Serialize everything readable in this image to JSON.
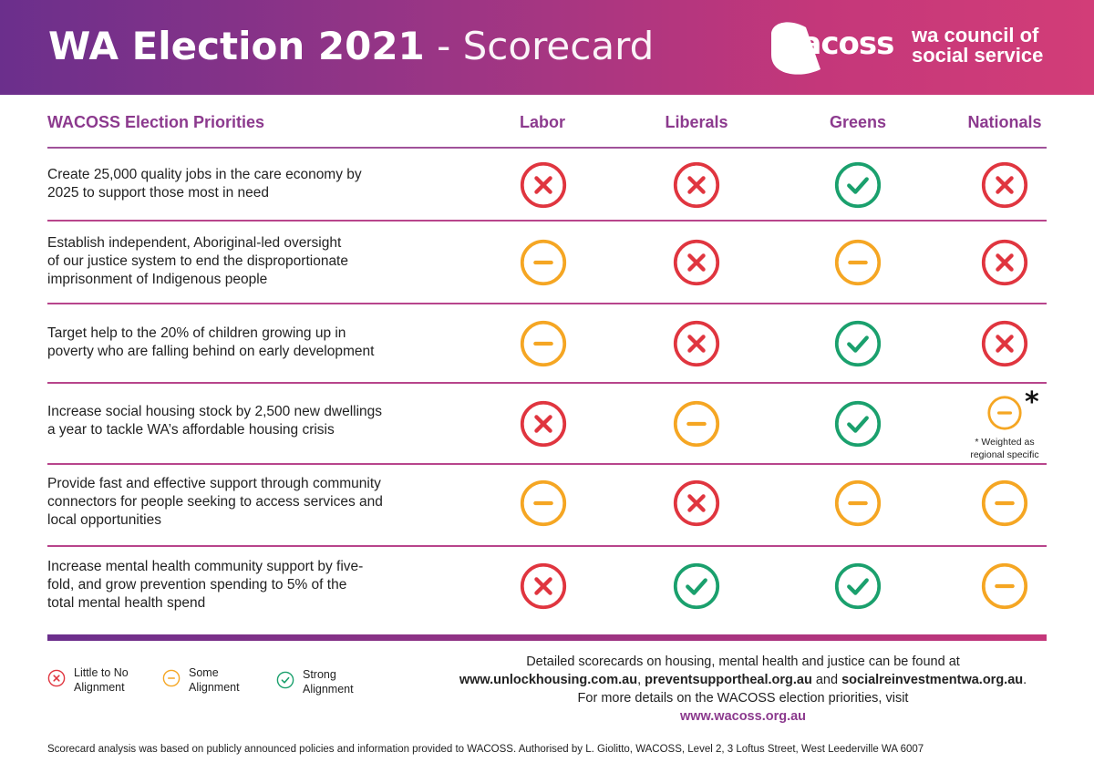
{
  "header": {
    "title_bold": "WA Election 2021",
    "title_light": " - Scorecard",
    "logo_word": "wacoss",
    "logo_org_line1": "wa council of",
    "logo_org_line2": "social service"
  },
  "colors": {
    "purple": "#6b2f8c",
    "magenta": "#c4377a",
    "heading": "#8c3a8e",
    "cross": "#e0353f",
    "dash": "#f5a623",
    "check": "#1aa06d"
  },
  "table": {
    "priorities_heading": "WACOSS Election Priorities",
    "parties": [
      "Labor",
      "Liberals",
      "Greens",
      "Nationals"
    ],
    "rows": [
      {
        "line1": "Create 25,000 quality jobs in the care economy by",
        "line2": "2025 to support those most in need",
        "line3": "",
        "ratings": [
          "cross",
          "cross",
          "check",
          "cross"
        ]
      },
      {
        "line1": "Establish independent, Aboriginal-led oversight",
        "line2": "of our justice system to end the disproportionate",
        "line3": "imprisonment of Indigenous people",
        "ratings": [
          "dash",
          "cross",
          "dash",
          "cross"
        ]
      },
      {
        "line1": "Target help to the 20% of children growing up in",
        "line2": "poverty who are falling behind on early development",
        "line3": "",
        "ratings": [
          "dash",
          "cross",
          "check",
          "cross"
        ]
      },
      {
        "line1": "Increase social housing stock by 2,500 new dwellings",
        "line2": "a year to tackle WA’s affordable housing crisis",
        "line3": "",
        "ratings": [
          "cross",
          "dash",
          "check",
          "dash"
        ]
      },
      {
        "line1": "Provide fast and effective support through community",
        "line2": "connectors for people seeking to access services and",
        "line3": "local opportunities",
        "ratings": [
          "dash",
          "cross",
          "dash",
          "dash"
        ]
      },
      {
        "line1": "Increase mental health community support by five-",
        "line2": "fold, and grow prevention spending to 5% of the",
        "line3": "total mental health spend",
        "ratings": [
          "cross",
          "check",
          "check",
          "dash"
        ]
      }
    ],
    "asterisk": "*",
    "note_line1": "* Weighted as",
    "note_line2": "regional  specific"
  },
  "legend": [
    {
      "icon": "cross",
      "line1": "Little to No",
      "line2": "Alignment"
    },
    {
      "icon": "dash",
      "line1": "Some",
      "line2": "Alignment"
    },
    {
      "icon": "check",
      "line1": "Strong",
      "line2": "Alignment"
    }
  ],
  "info": {
    "line1": "Detailed scorecards on housing, mental health and justice can be found at",
    "link_housing": "www.unlockhousing.com.au",
    "sep1": ", ",
    "link_prevent": "preventsupportheal.org.au",
    "sep2": " and ",
    "link_social": "socialreinvestmentwa.org.au",
    "end": ".",
    "line3": "For more details on the WACOSS election priorities, visit",
    "website": "www.wacoss.org.au"
  },
  "footer": "Scorecard analysis was based on publicly announced policies and information provided to WACOSS. Authorised by L. Giolitto, WACOSS, Level 2, 3 Loftus Street, West Leederville WA 6007"
}
